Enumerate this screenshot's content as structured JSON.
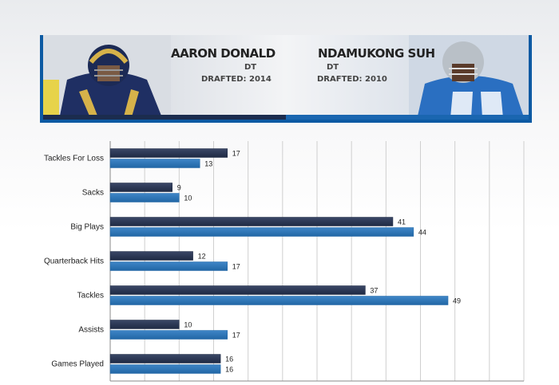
{
  "header": {
    "player1": {
      "name": "AARON DONALD",
      "position": "DT",
      "drafted": "DRAFTED: 2014"
    },
    "player2": {
      "name": "NDAMUKONG SUH",
      "position": "DT",
      "drafted": "DRAFTED: 2010"
    }
  },
  "colors": {
    "player1": "#1f2a44",
    "player2": "#2166a5",
    "accent": "#0d5aa3"
  },
  "chart_data": {
    "type": "bar",
    "orientation": "horizontal",
    "categories": [
      "Tackles For Loss",
      "Sacks",
      "Big Plays",
      "Quarterback Hits",
      "Tackles",
      "Assists",
      "Games Played"
    ],
    "series": [
      {
        "values": [
          17,
          9,
          41,
          12,
          37,
          10,
          16
        ]
      },
      {
        "values": [
          13,
          10,
          44,
          17,
          49,
          17,
          16
        ]
      }
    ],
    "xlim": [
      0,
      60
    ],
    "grid": true,
    "data_labels": true
  }
}
